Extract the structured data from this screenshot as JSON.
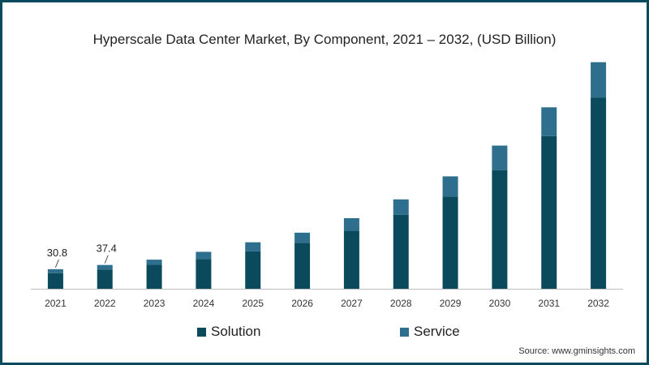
{
  "chart_data": {
    "type": "bar",
    "stacked": true,
    "title": "Hyperscale Data Center Market, By Component, 2021 – 2032, (USD Billion)",
    "xlabel": "",
    "ylabel": "",
    "categories": [
      "2021",
      "2022",
      "2023",
      "2024",
      "2025",
      "2026",
      "2027",
      "2028",
      "2029",
      "2030",
      "2031",
      "2032"
    ],
    "series": [
      {
        "name": "Solution",
        "color": "#0a4a5c",
        "values": [
          24.6,
          29.9,
          37.7,
          46.8,
          58.8,
          72.4,
          91.4,
          116.5,
          145.2,
          186.7,
          240.2,
          300.5
        ]
      },
      {
        "name": "Service",
        "color": "#2e6f8e",
        "values": [
          6.2,
          7.5,
          8.1,
          11.3,
          14.3,
          15.8,
          19.6,
          24.1,
          31.6,
          38.5,
          45.2,
          55.9
        ]
      }
    ],
    "data_labels": [
      {
        "category": "2021",
        "text": "30.8"
      },
      {
        "category": "2022",
        "text": "37.4"
      }
    ],
    "ylim": [
      0,
      370
    ],
    "grid": false,
    "legend_position": "bottom"
  },
  "legend": {
    "solution_label": "Solution",
    "service_label": "Service",
    "solution_color": "#0a4a5c",
    "service_color": "#2e6f8e"
  },
  "source_text": "Source: www.gminsights.com"
}
